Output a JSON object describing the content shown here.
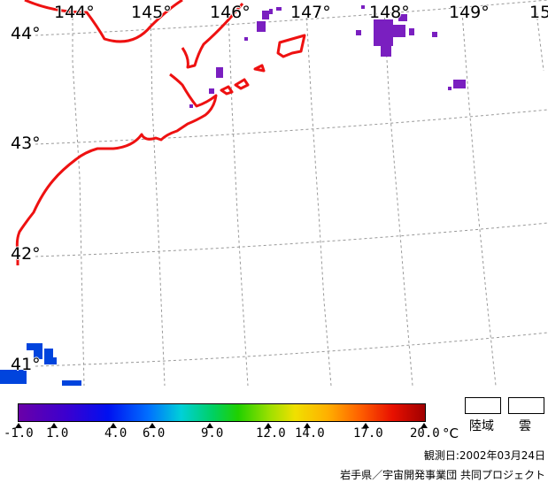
{
  "map": {
    "longitude_labels": [
      "144°",
      "145°",
      "146°",
      "147°",
      "148°",
      "149°",
      "15"
    ],
    "latitude_labels": [
      "44°",
      "43°",
      "42°",
      "41°"
    ],
    "colors": {
      "coastline": "#ee1111",
      "grid": "#999999",
      "cold_water": "#0044dd",
      "warm_water": "#7a1fc0"
    }
  },
  "colorbar": {
    "tick_labels": [
      "-1.0",
      "1.0",
      "4.0",
      "6.0",
      "9.0",
      "12.0",
      "14.0",
      "17.0",
      "20.0"
    ],
    "unit": "°C"
  },
  "legend": {
    "land_label": "陸域",
    "cloud_label": "雲"
  },
  "footer": {
    "observation_date": "観測日:2002年03月24日",
    "credit": "岩手県／宇宙開発事業団 共同プロジェクト"
  }
}
